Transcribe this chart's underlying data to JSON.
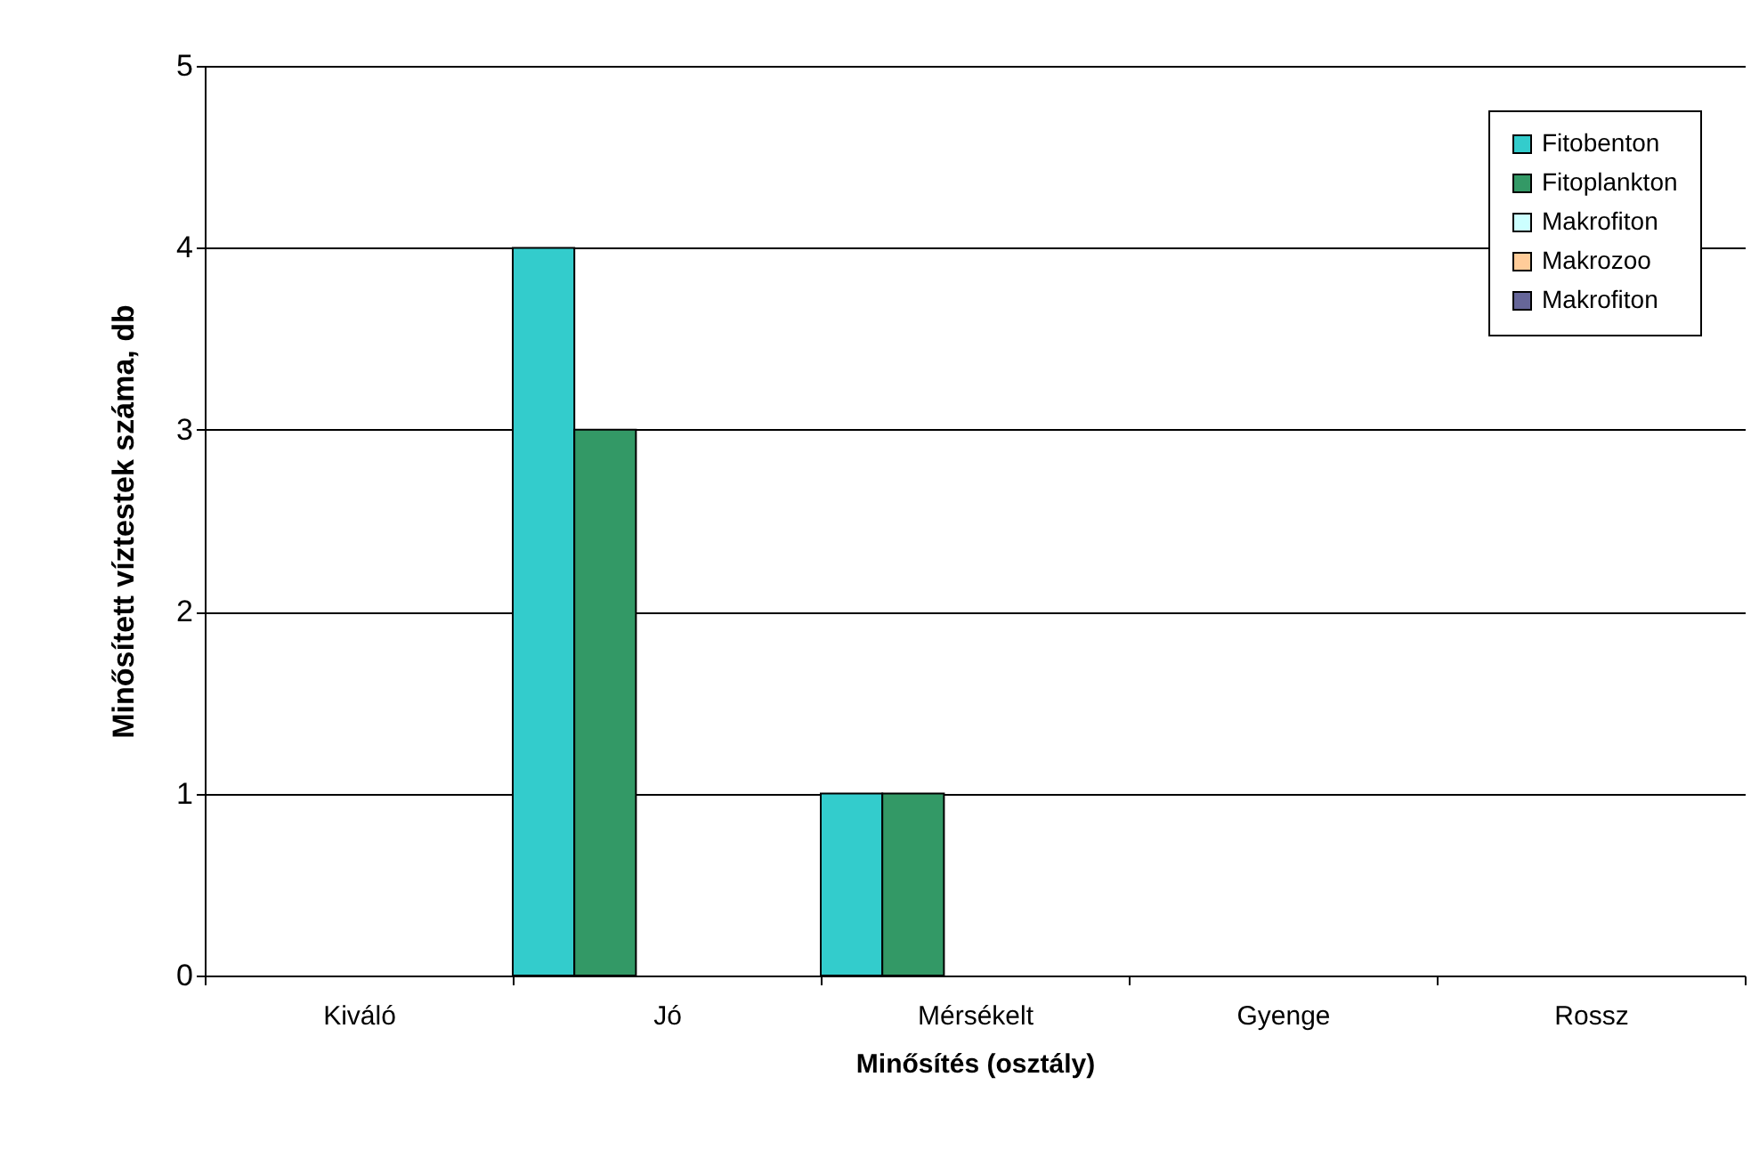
{
  "chart_data": {
    "type": "bar",
    "xlabel": "Minősítés (osztály)",
    "ylabel": "Minősített víztestek száma, db",
    "categories": [
      "Kiváló",
      "Jó",
      "Mérsékelt",
      "Gyenge",
      "Rossz"
    ],
    "series": [
      {
        "name": "Fitobenton",
        "color": "#33cccc",
        "values": [
          0,
          4,
          1,
          0,
          0
        ]
      },
      {
        "name": "Fitoplankton",
        "color": "#339966",
        "values": [
          0,
          3,
          1,
          0,
          0
        ]
      },
      {
        "name": "Makrofiton",
        "color": "#ccffff",
        "values": [
          0,
          0,
          0,
          0,
          0
        ]
      },
      {
        "name": "Makrozoo",
        "color": "#ffcc99",
        "values": [
          0,
          0,
          0,
          0,
          0
        ]
      },
      {
        "name": "Makrofiton",
        "color": "#666699",
        "values": [
          0,
          0,
          0,
          0,
          0
        ]
      }
    ],
    "ylim": [
      0,
      5
    ],
    "yticks": [
      0,
      1,
      2,
      3,
      4,
      5
    ],
    "grid": "y",
    "legend": "top right"
  }
}
